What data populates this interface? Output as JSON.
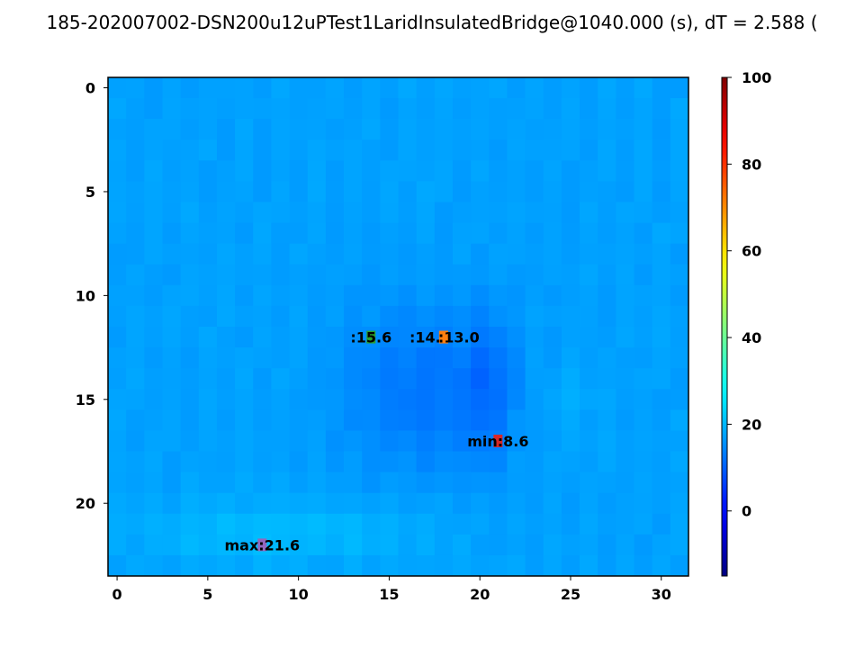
{
  "chart_data": {
    "type": "heatmap",
    "title": "185-202007002-DSN200u12uPTest1LaridInsulatedBridge@1040.000 (s), dT = 2.588 (",
    "colormap": "jet",
    "grid": false,
    "rows": 24,
    "cols": 32,
    "xlim": [
      -0.5,
      31.5
    ],
    "ylim": [
      23.5,
      -0.5
    ],
    "x_ticks": [
      0,
      5,
      10,
      15,
      20,
      25,
      30
    ],
    "y_ticks": [
      0,
      5,
      10,
      15,
      20
    ],
    "x_tick_labels": [
      "0",
      "5",
      "10",
      "15",
      "20",
      "25",
      "30"
    ],
    "y_tick_labels": [
      "0",
      "5",
      "10",
      "15",
      "20"
    ],
    "colorbar": {
      "range": [
        -15,
        100
      ],
      "ticks": [
        0,
        20,
        40,
        60,
        80,
        100
      ],
      "tick_labels": [
        "0",
        "20",
        "40",
        "60",
        "80",
        "100"
      ],
      "placement": "right"
    },
    "background_value": 17.5,
    "annotations": [
      {
        "x": 14,
        "y": 12,
        "label": ":15.6",
        "marker_color": "#2ca02c"
      },
      {
        "x": 18,
        "y": 12,
        "label": ":14.7",
        "marker_color": "#ff7f0e"
      },
      {
        "x": 18,
        "y": 12,
        "label": ":13.0",
        "marker_color": "#ff7f0e"
      },
      {
        "x": 21,
        "y": 17,
        "label": "min:8.6",
        "marker_color": "#d62728"
      },
      {
        "x": 8,
        "y": 22,
        "label": "max:21.6",
        "marker_color": "#9467bd"
      }
    ]
  }
}
